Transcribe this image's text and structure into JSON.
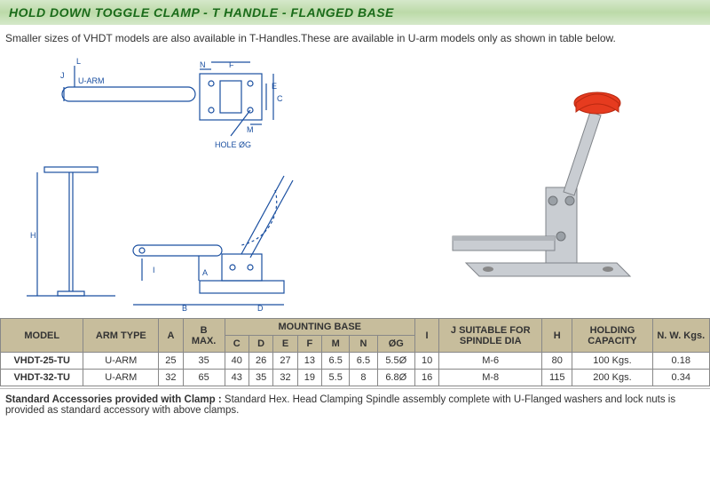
{
  "title": "HOLD DOWN TOGGLE CLAMP - T HANDLE - FLANGED BASE",
  "intro": "Smaller sizes of VHDT models are also available in T-Handles.These are available in U-arm models only as shown in table below.",
  "diagram_labels": {
    "uarm": "U-ARM",
    "hole": "HOLE ØG",
    "L": "L",
    "J": "J",
    "N": "N",
    "F": "F",
    "E": "E",
    "C": "C",
    "M": "M",
    "A": "A",
    "H": "H",
    "I": "I",
    "B": "B",
    "D": "D"
  },
  "table": {
    "headers": {
      "model": "MODEL",
      "arm": "ARM TYPE",
      "a": "A",
      "bmax": "B\nMAX.",
      "mounting": "MOUNTING BASE",
      "c": "C",
      "d": "D",
      "e": "E",
      "f": "F",
      "m": "M",
      "n": "N",
      "og": "ØG",
      "i": "I",
      "j": "J SUITABLE FOR SPINDLE DIA",
      "h": "H",
      "holding": "HOLDING CAPACITY",
      "nw": "N. W. Kgs."
    },
    "rows": [
      {
        "model": "VHDT-25-TU",
        "arm": "U-ARM",
        "a": "25",
        "bmax": "35",
        "c": "40",
        "d": "26",
        "e": "27",
        "f": "13",
        "m": "6.5",
        "n": "6.5",
        "og": "5.5Ø",
        "i": "10",
        "j": "M-6",
        "h": "80",
        "holding": "100 Kgs.",
        "nw": "0.18"
      },
      {
        "model": "VHDT-32-TU",
        "arm": "U-ARM",
        "a": "32",
        "bmax": "65",
        "c": "43",
        "d": "35",
        "e": "32",
        "f": "19",
        "m": "5.5",
        "n": "8",
        "og": "6.8Ø",
        "i": "16",
        "j": "M-8",
        "h": "115",
        "holding": "200 Kgs.",
        "nw": "0.34"
      }
    ]
  },
  "footer": {
    "lead": "Standard Accessories provided with Clamp :",
    "text": " Standard Hex. Head Clamping Spindle assembly complete with U-Flanged washers and lock nuts is provided as standard accessory with above clamps."
  },
  "colors": {
    "header_bg": "#c7bd9c",
    "title_grad_top": "#d5e8ca",
    "title_text": "#1a6b1a",
    "drawing_stroke": "#1a4fa0",
    "redcap": "#e63b1f"
  }
}
